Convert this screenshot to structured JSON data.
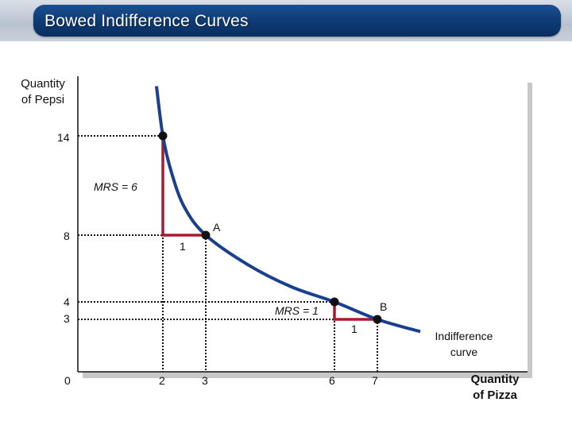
{
  "header": {
    "title": "Bowed Indifference Curves"
  },
  "chart_data": {
    "type": "line",
    "title": "Bowed Indifference Curves",
    "xlabel": "Quantity of Pizza",
    "ylabel": "Quantity of Pepsi",
    "x_ticks": [
      "0",
      "2",
      "3",
      "6",
      "7"
    ],
    "y_ticks": [
      "14",
      "8",
      "4",
      "3"
    ],
    "series": [
      {
        "name": "Indifference curve",
        "x": [
          1.85,
          2,
          2.2,
          2.5,
          3,
          4,
          5,
          6,
          7,
          8
        ],
        "y": [
          17,
          14,
          11.8,
          9.7,
          8,
          6.2,
          4.9,
          4,
          3,
          2.3
        ]
      }
    ],
    "points": [
      {
        "label": "",
        "x": 2,
        "y": 14
      },
      {
        "label": "A",
        "x": 3,
        "y": 8
      },
      {
        "label": "",
        "x": 6,
        "y": 4
      },
      {
        "label": "B",
        "x": 7,
        "y": 3
      }
    ],
    "annotations": [
      {
        "text": "MRS = 6",
        "from": [
          2,
          14
        ],
        "to": [
          3,
          8
        ],
        "run_label": "1"
      },
      {
        "text": "MRS = 1",
        "from": [
          6,
          4
        ],
        "to": [
          7,
          3
        ],
        "run_label": "1"
      }
    ],
    "curve_label": "Indifference curve",
    "colors": {
      "curve": "#1b3f8f",
      "triangle": "#a51d2d",
      "dots": "#111111"
    }
  },
  "labels": {
    "ylabel_line1": "Quantity",
    "ylabel_line2": "of Pepsi",
    "xlabel_line1": "Quantity",
    "xlabel_line2": "of Pizza",
    "curve_line1": "Indifference",
    "curve_line2": "curve",
    "point_a": "A",
    "point_b": "B",
    "mrs_6": "MRS = 6",
    "mrs_1": "MRS = 1",
    "run_label_1": "1",
    "run_label_2": "1",
    "tick_y_14": "14",
    "tick_y_8": "8",
    "tick_y_4": "4",
    "tick_y_3": "3",
    "tick_x_0": "0",
    "tick_x_2": "2",
    "tick_x_3": "3",
    "tick_x_6": "6",
    "tick_x_7": "7"
  }
}
